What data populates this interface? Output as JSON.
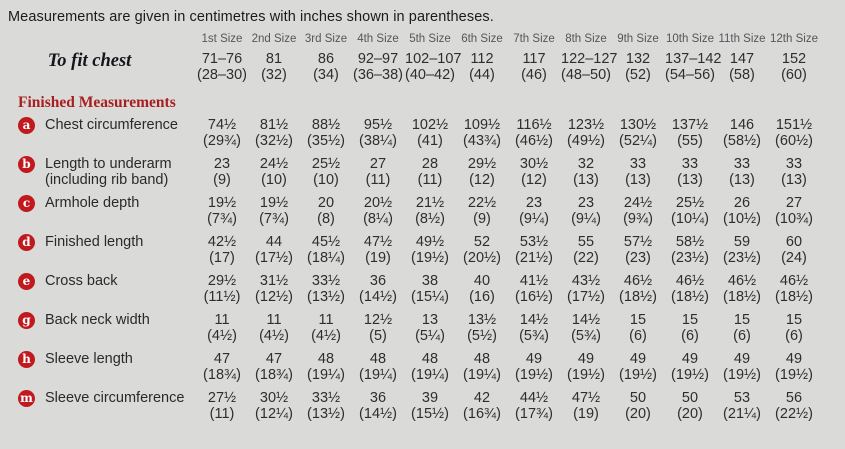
{
  "intro": "Measurements are given in centimetres with inches shown in parentheses.",
  "colors": {
    "background": "#dadad8",
    "bullet_red": "#c01a1f",
    "heading_red": "#a81f22",
    "number_text": "#2e2e30",
    "size_header_gray": "#55565a"
  },
  "table": {
    "size_headers": [
      "1st Size",
      "2nd Size",
      "3rd Size",
      "4th Size",
      "5th Size",
      "6th Size",
      "7th Size",
      "8th Size",
      "9th Size",
      "10th Size",
      "11th Size",
      "12th Size"
    ],
    "to_fit_chest": {
      "label": "To fit chest",
      "cm": [
        "71–76",
        "81",
        "86",
        "92–97",
        "102–107",
        "112",
        "117",
        "122–127",
        "132",
        "137–142",
        "147",
        "152"
      ],
      "in": [
        "(28–30)",
        "(32)",
        "(34)",
        "(36–38)",
        "(40–42)",
        "(44)",
        "(46)",
        "(48–50)",
        "(52)",
        "(54–56)",
        "(58)",
        "(60)"
      ]
    },
    "section_heading": "Finished Measurements",
    "rows": [
      {
        "bullet": "a",
        "label": "Chest circumference",
        "label2": "",
        "cm": [
          "74½",
          "81½",
          "88½",
          "95½",
          "102½",
          "109½",
          "116½",
          "123½",
          "130½",
          "137½",
          "146",
          "151½"
        ],
        "in": [
          "(29¾)",
          "(32½)",
          "(35½)",
          "(38¼)",
          "(41)",
          "(43¾)",
          "(46½)",
          "(49½)",
          "(52¼)",
          "(55)",
          "(58½)",
          "(60½)"
        ]
      },
      {
        "bullet": "b",
        "label": "Length to underarm",
        "label2": "(including rib band)",
        "cm": [
          "23",
          "24½",
          "25½",
          "27",
          "28",
          "29½",
          "30½",
          "32",
          "33",
          "33",
          "33",
          "33"
        ],
        "in": [
          "(9)",
          "(10)",
          "(10)",
          "(11)",
          "(11)",
          "(12)",
          "(12)",
          "(13)",
          "(13)",
          "(13)",
          "(13)",
          "(13)"
        ]
      },
      {
        "bullet": "c",
        "label": "Armhole depth",
        "label2": "",
        "cm": [
          "19½",
          "19½",
          "20",
          "20½",
          "21½",
          "22½",
          "23",
          "23",
          "24½",
          "25½",
          "26",
          "27"
        ],
        "in": [
          "(7¾)",
          "(7¾)",
          "(8)",
          "(8¼)",
          "(8½)",
          "(9)",
          "(9¼)",
          "(9¼)",
          "(9¾)",
          "(10¼)",
          "(10½)",
          "(10¾)"
        ]
      },
      {
        "bullet": "d",
        "label": "Finished length",
        "label2": "",
        "cm": [
          "42½",
          "44",
          "45½",
          "47½",
          "49½",
          "52",
          "53½",
          "55",
          "57½",
          "58½",
          "59",
          "60"
        ],
        "in": [
          "(17)",
          "(17½)",
          "(18¼)",
          "(19)",
          "(19½)",
          "(20½)",
          "(21½)",
          "(22)",
          "(23)",
          "(23½)",
          "(23½)",
          "(24)"
        ]
      },
      {
        "bullet": "e",
        "label": "Cross back",
        "label2": "",
        "cm": [
          "29½",
          "31½",
          "33½",
          "36",
          "38",
          "40",
          "41½",
          "43½",
          "46½",
          "46½",
          "46½",
          "46½"
        ],
        "in": [
          "(11½)",
          "(12½)",
          "(13½)",
          "(14½)",
          "(15¼)",
          "(16)",
          "(16½)",
          "(17½)",
          "(18½)",
          "(18½)",
          "(18½)",
          "(18½)"
        ]
      },
      {
        "bullet": "g",
        "label": "Back neck width",
        "label2": "",
        "cm": [
          "11",
          "11",
          "11",
          "12½",
          "13",
          "13½",
          "14½",
          "14½",
          "15",
          "15",
          "15",
          "15"
        ],
        "in": [
          "(4½)",
          "(4½)",
          "(4½)",
          "(5)",
          "(5¼)",
          "(5½)",
          "(5¾)",
          "(5¾)",
          "(6)",
          "(6)",
          "(6)",
          "(6)"
        ]
      },
      {
        "bullet": "h",
        "label": "Sleeve length",
        "label2": "",
        "cm": [
          "47",
          "47",
          "48",
          "48",
          "48",
          "48",
          "49",
          "49",
          "49",
          "49",
          "49",
          "49"
        ],
        "in": [
          "(18¾)",
          "(18¾)",
          "(19¼)",
          "(19¼)",
          "(19¼)",
          "(19¼)",
          "(19½)",
          "(19½)",
          "(19½)",
          "(19½)",
          "(19½)",
          "(19½)"
        ]
      },
      {
        "bullet": "m",
        "label": "Sleeve circumference",
        "label2": "",
        "cm": [
          "27½",
          "30½",
          "33½",
          "36",
          "39",
          "42",
          "44½",
          "47½",
          "50",
          "50",
          "53",
          "56"
        ],
        "in": [
          "(11)",
          "(12¼)",
          "(13½)",
          "(14½)",
          "(15½)",
          "(16¾)",
          "(17¾)",
          "(19)",
          "(20)",
          "(20)",
          "(21¼)",
          "(22½)"
        ]
      }
    ]
  }
}
